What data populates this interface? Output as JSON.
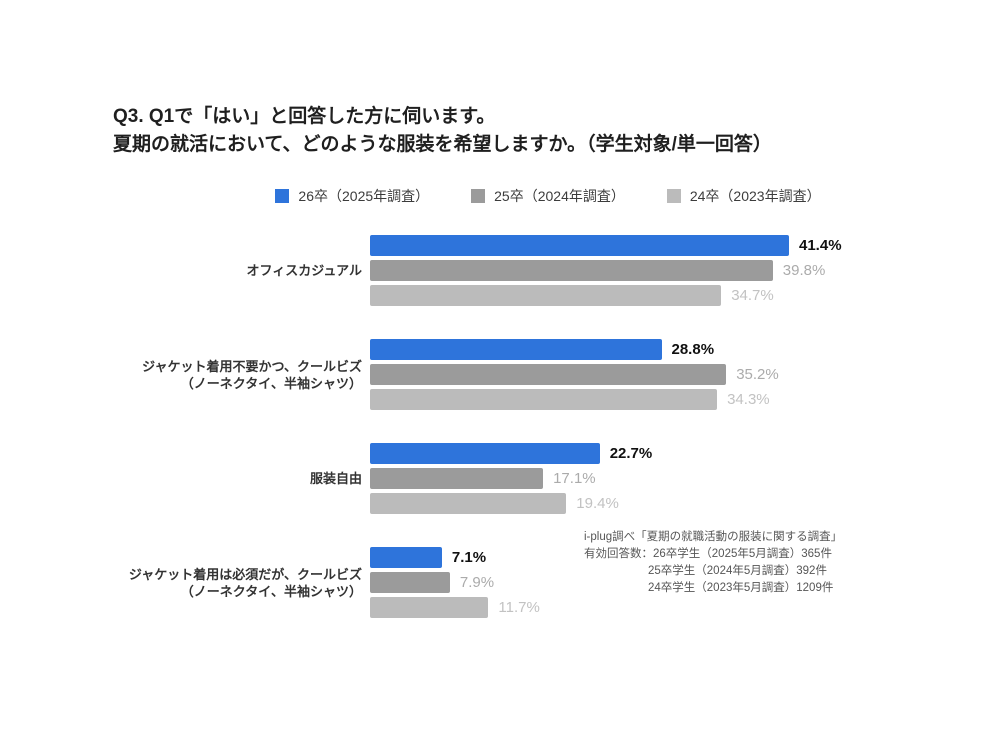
{
  "title": {
    "line1": "Q3. Q1で「はい」と回答した方に伺います。",
    "line2": "夏期の就活において、どのような服装を希望しますか。（学生対象/単一回答）"
  },
  "chart_data": {
    "type": "bar",
    "orientation": "horizontal",
    "title": "Q3. Q1で「はい」と回答した方に伺います。夏期の就活において、どのような服装を希望しますか。（学生対象/単一回答）",
    "categories": [
      [
        "オフィスカジュアル"
      ],
      [
        "ジャケット着用不要かつ、クールビズ",
        "（ノーネクタイ、半袖シャツ）"
      ],
      [
        "服装自由"
      ],
      [
        "ジャケット着用は必須だが、クールビズ",
        "（ノーネクタイ、半袖シャツ）"
      ]
    ],
    "series": [
      {
        "name": "26卒（2025年調査）",
        "color": "#2E74DB",
        "label_color": "#111111",
        "label_weight": "700",
        "values": [
          41.4,
          28.8,
          22.7,
          7.1
        ]
      },
      {
        "name": "25卒（2024年調査）",
        "color": "#9B9B9B",
        "label_color": "#ABABAB",
        "label_weight": "400",
        "values": [
          39.8,
          35.2,
          17.1,
          7.9
        ]
      },
      {
        "name": "24卒（2023年調査）",
        "color": "#BBBBBB",
        "label_color": "#C2C2C2",
        "label_weight": "400",
        "values": [
          34.7,
          34.3,
          19.4,
          11.7
        ]
      }
    ],
    "value_suffix": "%",
    "xlim": [
      0,
      41.5
    ],
    "data_labels": true,
    "legend_position": "top",
    "grid": false
  },
  "footnote": {
    "line1": "i-plug調べ「夏期の就職活動の服装に関する調査」",
    "line2": "有効回答数：26卒学生（2025年5月調査）365件",
    "line3": "25卒学生（2024年5月調査）392件",
    "line4": "24卒学生（2023年5月調査）1209件"
  }
}
